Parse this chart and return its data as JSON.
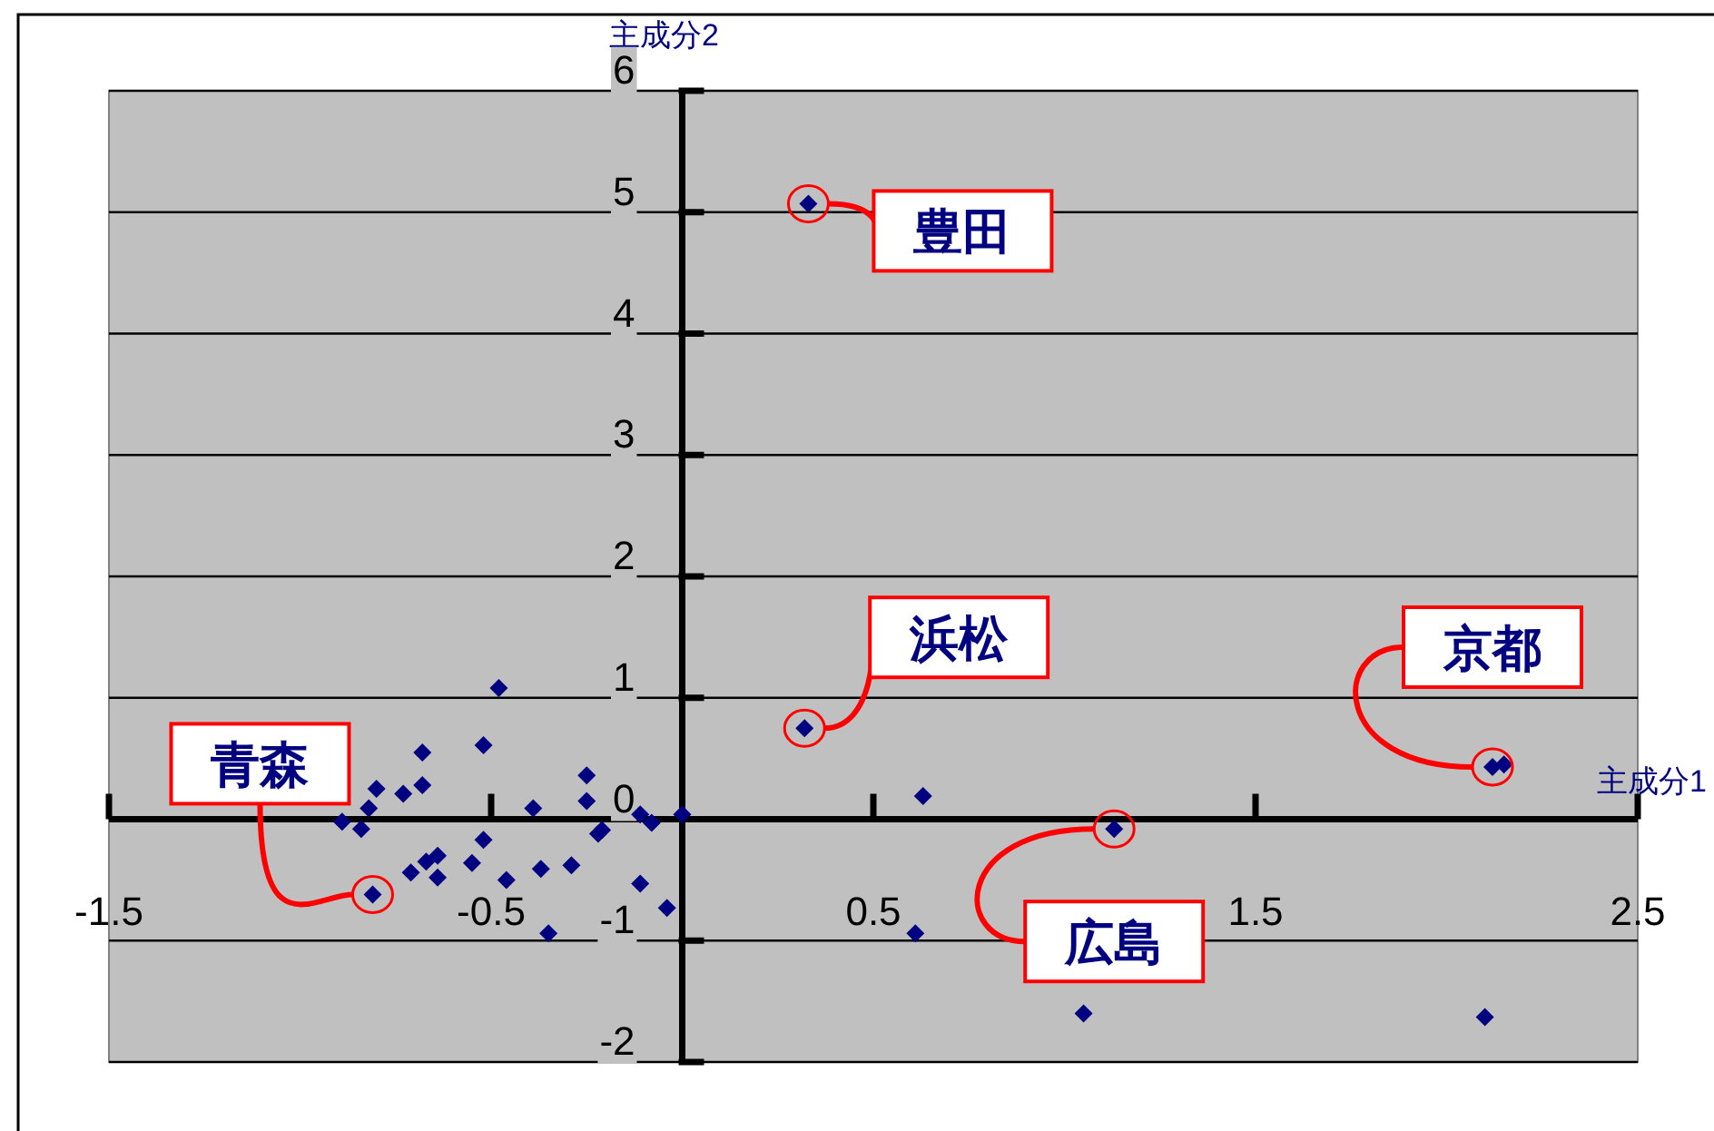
{
  "chart_data": {
    "type": "scatter",
    "xlabel": "主成分1",
    "ylabel": "主成分2",
    "xlim": [
      -1.5,
      2.5
    ],
    "ylim": [
      -2,
      6
    ],
    "xticks": [
      -1.5,
      -0.5,
      0.5,
      1.5,
      2.5
    ],
    "yticks": [
      -2,
      -1,
      0,
      1,
      2,
      3,
      4,
      5,
      6
    ],
    "grid": "y",
    "marker": "diamond",
    "color": "#000080",
    "x": [
      0.33,
      0.32,
      2.12,
      2.15,
      0.63,
      1.13,
      0.61,
      1.05,
      2.1,
      -0.48,
      -0.52,
      -0.68,
      -0.68,
      -0.73,
      -0.8,
      -0.82,
      -0.89,
      -0.84,
      -0.81,
      -0.71,
      -0.67,
      -0.64,
      -0.64,
      -0.55,
      -0.52,
      -0.46,
      -0.39,
      -0.37,
      -0.35,
      -0.29,
      -0.25,
      -0.25,
      -0.22,
      -0.21,
      -0.11,
      -0.08,
      -0.11,
      -0.04,
      0.0
    ],
    "values": [
      5.07,
      0.75,
      0.43,
      0.45,
      0.19,
      -0.08,
      -0.94,
      -1.6,
      -1.63,
      1.08,
      0.61,
      0.55,
      0.28,
      0.21,
      0.25,
      0.09,
      -0.02,
      -0.08,
      -0.62,
      -0.44,
      -0.35,
      -0.3,
      -0.48,
      -0.36,
      -0.17,
      -0.5,
      0.09,
      -0.41,
      -0.94,
      -0.38,
      0.36,
      0.15,
      -0.12,
      -0.09,
      0.04,
      -0.03,
      -0.53,
      -0.73,
      0.04
    ],
    "annotations": [
      {
        "text": "豊田",
        "x": 0.33,
        "y": 5.07
      },
      {
        "text": "浜松",
        "x": 0.32,
        "y": 0.75
      },
      {
        "text": "京都",
        "x": 2.12,
        "y": 0.43
      },
      {
        "text": "広島",
        "x": 1.13,
        "y": -0.08
      },
      {
        "text": "青森",
        "x": -0.81,
        "y": -0.62
      }
    ]
  }
}
